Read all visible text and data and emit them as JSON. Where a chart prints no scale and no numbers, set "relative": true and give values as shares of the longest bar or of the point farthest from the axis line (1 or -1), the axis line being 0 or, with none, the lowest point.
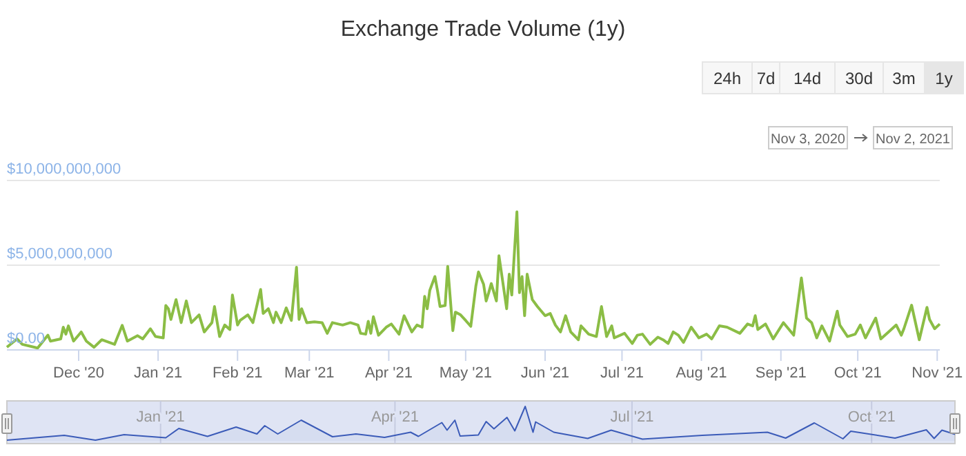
{
  "chart_data": [
    {
      "type": "line",
      "title": "Exchange Trade Volume (1y)",
      "color": "#8bbd45",
      "grid": "y",
      "xlim": [
        "2020-11-03",
        "2021-11-02"
      ],
      "ylim": [
        0,
        10000000000
      ],
      "yticks": [
        {
          "value": 0,
          "label": "$0.00"
        },
        {
          "value": 5000000000,
          "label": "$5,000,000,000"
        },
        {
          "value": 10000000000,
          "label": "$10,000,000,000"
        }
      ],
      "xticks": [
        {
          "value": "2020-12-01",
          "label": "Dec '20"
        },
        {
          "value": "2021-01-01",
          "label": "Jan '21"
        },
        {
          "value": "2021-02-01",
          "label": "Feb '21"
        },
        {
          "value": "2021-03-01",
          "label": "Mar '21"
        },
        {
          "value": "2021-04-01",
          "label": "Apr '21"
        },
        {
          "value": "2021-05-01",
          "label": "May '21"
        },
        {
          "value": "2021-06-01",
          "label": "Jun '21"
        },
        {
          "value": "2021-07-01",
          "label": "Jul '21"
        },
        {
          "value": "2021-08-01",
          "label": "Aug '21"
        },
        {
          "value": "2021-09-01",
          "label": "Sep '21"
        },
        {
          "value": "2021-10-01",
          "label": "Oct '21"
        },
        {
          "value": "2021-11-01",
          "label": "Nov '21"
        }
      ],
      "annotations": [
        "24h",
        "7d",
        "14d",
        "30d",
        "3m",
        "1y",
        "Nov 3, 2020",
        "Nov 2, 2021"
      ],
      "x": [
        "2020-11-03",
        "2020-11-07",
        "2020-11-09",
        "2020-11-15",
        "2020-11-19",
        "2020-11-20",
        "2020-11-24",
        "2020-11-25",
        "2020-11-26",
        "2020-11-27",
        "2020-11-29",
        "2020-12-02",
        "2020-12-04",
        "2020-12-07",
        "2020-12-10",
        "2020-12-15",
        "2020-12-18",
        "2020-12-20",
        "2020-12-24",
        "2020-12-26",
        "2020-12-29",
        "2020-12-31",
        "2021-01-03",
        "2021-01-04",
        "2021-01-05",
        "2021-01-06",
        "2021-01-08",
        "2021-01-10",
        "2021-01-12",
        "2021-01-14",
        "2021-01-17",
        "2021-01-19",
        "2021-01-22",
        "2021-01-23",
        "2021-01-25",
        "2021-01-27",
        "2021-01-29",
        "2021-01-30",
        "2021-02-01",
        "2021-02-02",
        "2021-02-05",
        "2021-02-07",
        "2021-02-10",
        "2021-02-11",
        "2021-02-13",
        "2021-02-15",
        "2021-02-16",
        "2021-02-18",
        "2021-02-20",
        "2021-02-22",
        "2021-02-24",
        "2021-02-25",
        "2021-02-26",
        "2021-02-28",
        "2021-03-03",
        "2021-03-06",
        "2021-03-08",
        "2021-03-10",
        "2021-03-14",
        "2021-03-17",
        "2021-03-20",
        "2021-03-21",
        "2021-03-23",
        "2021-03-24",
        "2021-03-25",
        "2021-03-26",
        "2021-03-28",
        "2021-03-31",
        "2021-04-02",
        "2021-04-05",
        "2021-04-07",
        "2021-04-10",
        "2021-04-12",
        "2021-04-14",
        "2021-04-15",
        "2021-04-16",
        "2021-04-17",
        "2021-04-19",
        "2021-04-20",
        "2021-04-21",
        "2021-04-23",
        "2021-04-24",
        "2021-04-26",
        "2021-04-27",
        "2021-04-29",
        "2021-05-01",
        "2021-05-03",
        "2021-05-05",
        "2021-05-06",
        "2021-05-08",
        "2021-05-09",
        "2021-05-10",
        "2021-05-11",
        "2021-05-13",
        "2021-05-14",
        "2021-05-17",
        "2021-05-18",
        "2021-05-19",
        "2021-05-21",
        "2021-05-22",
        "2021-05-23",
        "2021-05-24",
        "2021-05-25",
        "2021-05-27",
        "2021-05-29",
        "2021-06-01",
        "2021-06-03",
        "2021-06-05",
        "2021-06-07",
        "2021-06-09",
        "2021-06-11",
        "2021-06-14",
        "2021-06-15",
        "2021-06-18",
        "2021-06-21",
        "2021-06-23",
        "2021-06-25",
        "2021-06-27",
        "2021-06-28",
        "2021-07-02",
        "2021-07-05",
        "2021-07-07",
        "2021-07-09",
        "2021-07-12",
        "2021-07-15",
        "2021-07-17",
        "2021-07-19",
        "2021-07-21",
        "2021-07-23",
        "2021-07-25",
        "2021-07-28",
        "2021-07-31",
        "2021-08-03",
        "2021-08-05",
        "2021-08-08",
        "2021-08-11",
        "2021-08-16",
        "2021-08-19",
        "2021-08-21",
        "2021-08-22",
        "2021-08-23",
        "2021-08-26",
        "2021-08-29",
        "2021-09-02",
        "2021-09-06",
        "2021-09-09",
        "2021-09-11",
        "2021-09-13",
        "2021-09-15",
        "2021-09-17",
        "2021-09-20",
        "2021-09-23",
        "2021-09-24",
        "2021-09-27",
        "2021-09-30",
        "2021-10-02",
        "2021-10-04",
        "2021-10-08",
        "2021-10-10",
        "2021-10-13",
        "2021-10-16",
        "2021-10-18",
        "2021-10-19",
        "2021-10-22",
        "2021-10-25",
        "2021-10-28",
        "2021-10-29",
        "2021-10-31",
        "2021-11-02"
      ],
      "values": [
        160000000.0,
        650000000.0,
        330000000.0,
        110000000.0,
        870000000.0,
        520000000.0,
        650000000.0,
        1340000000.0,
        930000000.0,
        1420000000.0,
        520000000.0,
        1060000000.0,
        520000000.0,
        160000000.0,
        600000000.0,
        330000000.0,
        1450000000.0,
        520000000.0,
        840000000.0,
        650000000.0,
        1250000000.0,
        790000000.0,
        710000000.0,
        2620000000.0,
        2430000000.0,
        1800000000.0,
        2970000000.0,
        1610000000.0,
        2890000000.0,
        1610000000.0,
        2070000000.0,
        1060000000.0,
        1610000000.0,
        2560000000.0,
        790000000.0,
        1470000000.0,
        1200000000.0,
        3240000000.0,
        1470000000.0,
        1740000000.0,
        2070000000.0,
        1610000000.0,
        3570000000.0,
        2150000000.0,
        2430000000.0,
        1610000000.0,
        2230000000.0,
        1610000000.0,
        2480000000.0,
        1740000000.0,
        4880000000.0,
        1800000000.0,
        2430000000.0,
        1610000000.0,
        1660000000.0,
        1610000000.0,
        980000000.0,
        1610000000.0,
        1470000000.0,
        1610000000.0,
        1470000000.0,
        980000000.0,
        930000000.0,
        1690000000.0,
        980000000.0,
        1960000000.0,
        870000000.0,
        1340000000.0,
        1530000000.0,
        930000000.0,
        2020000000.0,
        1060000000.0,
        1470000000.0,
        1340000000.0,
        3160000000.0,
        2430000000.0,
        3510000000.0,
        4330000000.0,
        3510000000.0,
        2560000000.0,
        2620000000.0,
        4930000000.0,
        1140000000.0,
        2230000000.0,
        2070000000.0,
        1740000000.0,
        1390000000.0,
        3790000000.0,
        4600000000.0,
        3870000000.0,
        2890000000.0,
        3380000000.0,
        3920000000.0,
        2890000000.0,
        5560000000.0,
        2430000000.0,
        4470000000.0,
        3240000000.0,
        8150000000.0,
        3380000000.0,
        4330000000.0,
        2020000000.0,
        4470000000.0,
        2970000000.0,
        2560000000.0,
        2020000000.0,
        2150000000.0,
        1470000000.0,
        1060000000.0,
        2020000000.0,
        1060000000.0,
        600000000.0,
        1420000000.0,
        930000000.0,
        790000000.0,
        2560000000.0,
        790000000.0,
        1420000000.0,
        710000000.0,
        980000000.0,
        380000000.0,
        870000000.0,
        930000000.0,
        330000000.0,
        750000000.0,
        600000000.0,
        380000000.0,
        1060000000.0,
        870000000.0,
        440000000.0,
        1340000000.0,
        710000000.0,
        930000000.0,
        650000000.0,
        1420000000.0,
        1340000000.0,
        980000000.0,
        1530000000.0,
        1420000000.0,
        2020000000.0,
        1200000000.0,
        1530000000.0,
        650000000.0,
        1610000000.0,
        870000000.0,
        4250000000.0,
        1880000000.0,
        1610000000.0,
        710000000.0,
        1420000000.0,
        520000000.0,
        2290000000.0,
        1470000000.0,
        790000000.0,
        930000000.0,
        1470000000.0,
        710000000.0,
        1880000000.0,
        650000000.0,
        1060000000.0,
        1470000000.0,
        870000000.0,
        1250000000.0,
        2640000000.0,
        600000000.0,
        2510000000.0,
        1800000000.0,
        1250000000.0,
        1530000000.0
      ]
    },
    {
      "type": "area",
      "relative": true,
      "color": "#3b5bb8",
      "grid": "x",
      "tick_labels": "x",
      "xlim": [
        "2020-11-03",
        "2021-11-02"
      ],
      "xticks": [
        {
          "value": "2021-01-01",
          "label": "Jan '21"
        },
        {
          "value": "2021-04-01",
          "label": "Apr '21"
        },
        {
          "value": "2021-07-01",
          "label": "Jul '21"
        },
        {
          "value": "2021-10-01",
          "label": "Oct '21"
        }
      ],
      "x": [
        "2020-11-03",
        "2020-11-25",
        "2020-12-07",
        "2020-12-18",
        "2021-01-03",
        "2021-01-08",
        "2021-01-19",
        "2021-01-30",
        "2021-02-07",
        "2021-02-10",
        "2021-02-15",
        "2021-02-24",
        "2021-03-08",
        "2021-03-17",
        "2021-03-28",
        "2021-04-07",
        "2021-04-10",
        "2021-04-19",
        "2021-04-21",
        "2021-04-24",
        "2021-04-26",
        "2021-05-03",
        "2021-05-06",
        "2021-05-09",
        "2021-05-14",
        "2021-05-17",
        "2021-05-21",
        "2021-05-24",
        "2021-05-25",
        "2021-06-01",
        "2021-06-14",
        "2021-06-23",
        "2021-07-05",
        "2021-07-28",
        "2021-08-22",
        "2021-08-29",
        "2021-09-09",
        "2021-09-20",
        "2021-09-23",
        "2021-10-10",
        "2021-10-22",
        "2021-10-25",
        "2021-10-28",
        "2021-11-02"
      ],
      "values": [
        0.02,
        0.16,
        0.02,
        0.18,
        0.09,
        0.36,
        0.13,
        0.4,
        0.2,
        0.44,
        0.2,
        0.6,
        0.12,
        0.2,
        0.1,
        0.25,
        0.13,
        0.53,
        0.31,
        0.6,
        0.14,
        0.17,
        0.56,
        0.35,
        0.68,
        0.29,
        1,
        0.25,
        0.55,
        0.25,
        0.07,
        0.31,
        0.05,
        0.16,
        0.25,
        0.08,
        0.52,
        0.06,
        0.28,
        0.08,
        0.32,
        0.07,
        0.31,
        0.19
      ]
    }
  ]
}
